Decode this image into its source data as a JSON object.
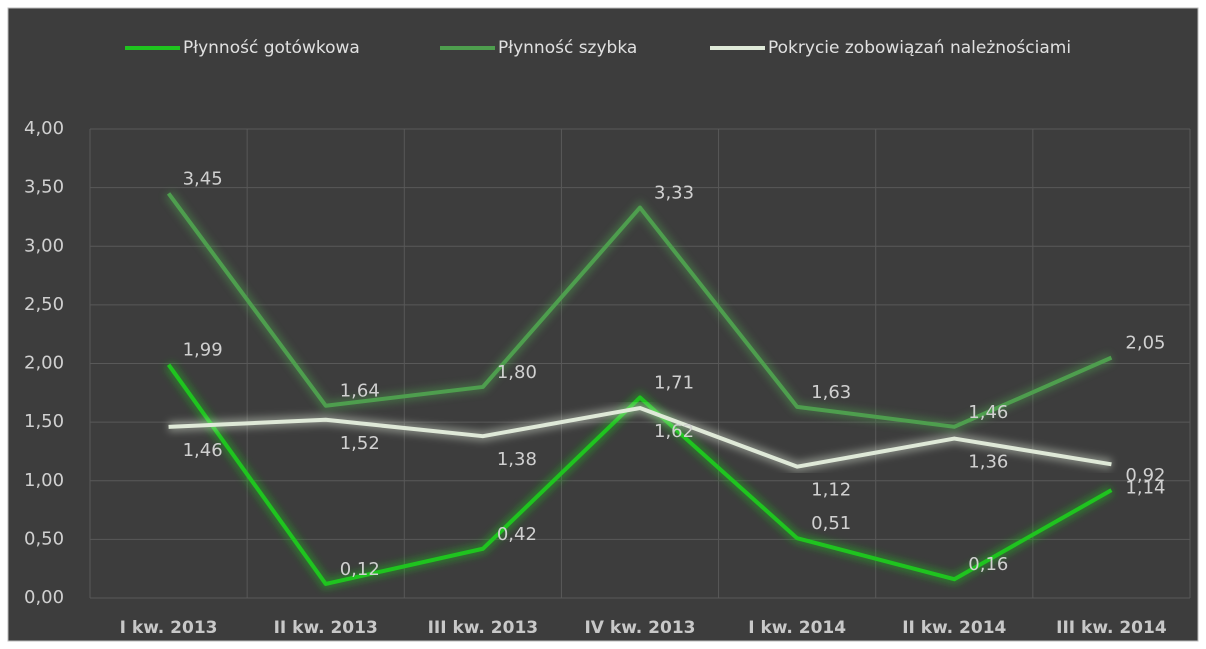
{
  "chart_data": {
    "type": "line",
    "categories": [
      "I kw. 2013",
      "II kw. 2013",
      "III kw. 2013",
      "IV kw. 2013",
      "I kw. 2014",
      "II kw. 2014",
      "III kw. 2014"
    ],
    "series": [
      {
        "name": "Płynność gotówkowa",
        "color": "#1fc41f",
        "values": [
          1.99,
          0.12,
          0.42,
          1.71,
          0.51,
          0.16,
          0.92
        ],
        "value_labels": [
          "1,99",
          "0,12",
          "0,42",
          "1,71",
          "0,51",
          "0,16",
          "0,92"
        ]
      },
      {
        "name": "Płynność szybka",
        "color": "#4e9e4e",
        "values": [
          3.45,
          1.64,
          1.8,
          3.33,
          1.63,
          1.46,
          2.05
        ],
        "value_labels": [
          "3,45",
          "1,64",
          "1,80",
          "3,33",
          "1,63",
          "1,46",
          "2,05"
        ]
      },
      {
        "name": "Pokrycie zobowiązań należnościami",
        "color": "#dfe9d8",
        "values": [
          1.46,
          1.52,
          1.38,
          1.62,
          1.12,
          1.36,
          1.14
        ],
        "value_labels": [
          "1,46",
          "1,52",
          "1,38",
          "1,62",
          "1,12",
          "1,36",
          "1,14"
        ]
      }
    ],
    "ylim": [
      0,
      4
    ],
    "yticks": [
      {
        "value": 0,
        "label": "0,00"
      },
      {
        "value": 0.5,
        "label": "0,50"
      },
      {
        "value": 1,
        "label": "1,00"
      },
      {
        "value": 1.5,
        "label": "1,50"
      },
      {
        "value": 2,
        "label": "2,00"
      },
      {
        "value": 2.5,
        "label": "2,50"
      },
      {
        "value": 3,
        "label": "3,00"
      },
      {
        "value": 3.5,
        "label": "3,50"
      },
      {
        "value": 4,
        "label": "4,00"
      }
    ],
    "grid": true,
    "legend": "top"
  }
}
